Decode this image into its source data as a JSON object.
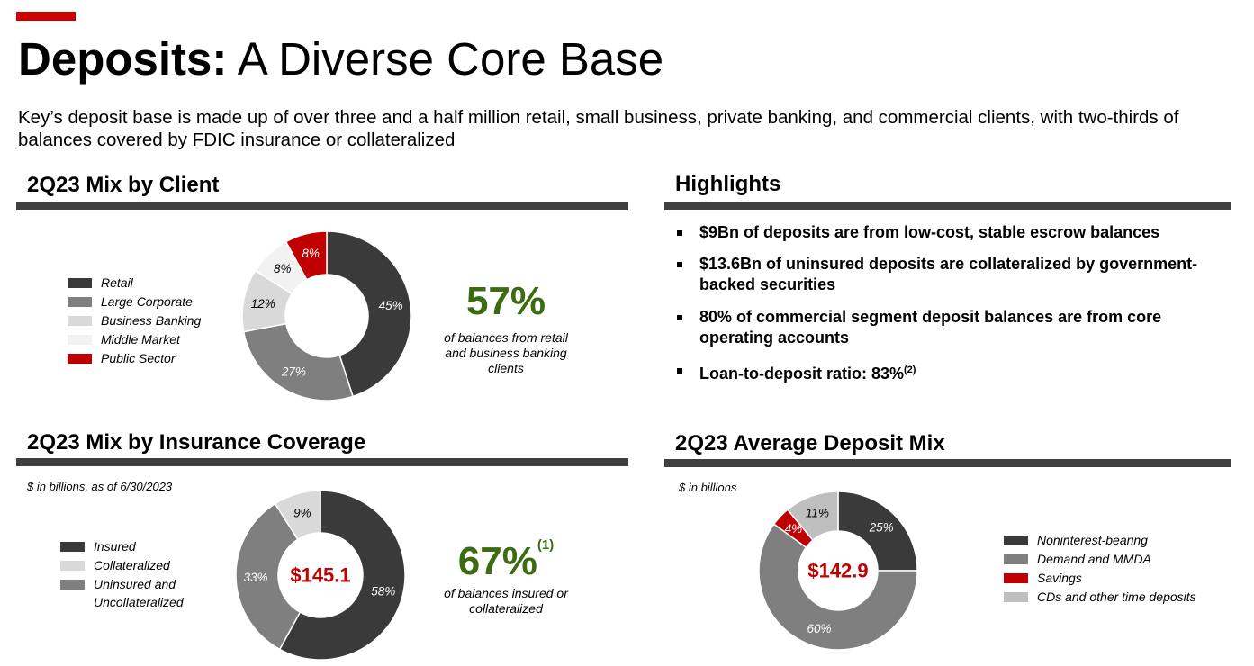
{
  "header": {
    "title_bold": "Deposits:",
    "title_rest": " A Diverse Core Base",
    "subtitle": "Key’s deposit base is made up of over three and a half million retail, small business, private banking, and commercial clients, with two-thirds of balances covered by FDIC insurance or collateralized"
  },
  "client_section": {
    "title": "2Q23 Mix by Client",
    "big_pct": "57%",
    "big_caption": "of balances from retail and business banking clients"
  },
  "insurance_section": {
    "title": "2Q23 Mix by Insurance Coverage",
    "note": "$ in billions, as of 6/30/2023",
    "big_pct": "67%",
    "big_pct_footnote": "(1)",
    "big_caption": "of balances insured or collateralized"
  },
  "highlights_section": {
    "title": "Highlights",
    "items": [
      {
        "text": "$9Bn of deposits are from low-cost, stable escrow balances",
        "footnote": ""
      },
      {
        "text": "$13.6Bn of uninsured deposits are collateralized by government-backed securities",
        "footnote": ""
      },
      {
        "text": "80% of commercial segment deposit balances are from core operating accounts",
        "footnote": ""
      },
      {
        "text": "Loan-to-deposit ratio: 83%",
        "footnote": "(2)"
      }
    ]
  },
  "avg_section": {
    "title": "2Q23 Average Deposit Mix",
    "note": "$ in billions"
  },
  "chart_data": [
    {
      "type": "pie",
      "title": "2Q23 Mix by Client",
      "center_label": "",
      "categories": [
        "Retail",
        "Large Corporate",
        "Business Banking",
        "Middle Market",
        "Public Sector"
      ],
      "values": [
        45,
        27,
        12,
        8,
        8
      ],
      "labels": [
        "45%",
        "27%",
        "12%",
        "8%",
        "8%"
      ],
      "colors": [
        "#3a3a3a",
        "#7f7f7f",
        "#d9d9d9",
        "#f2f2f2",
        "#c00000"
      ],
      "label_colors": [
        "#ffffff",
        "#ffffff",
        "#000000",
        "#000000",
        "#ffffff"
      ],
      "legend_position": "left"
    },
    {
      "type": "pie",
      "title": "2Q23 Mix by Insurance Coverage",
      "center_label": "$145.1",
      "categories": [
        "Insured",
        "Uninsured and Uncollateralized",
        "Collateralized"
      ],
      "values": [
        58,
        33,
        9
      ],
      "labels": [
        "58%",
        "33%",
        "9%"
      ],
      "colors": [
        "#3a3a3a",
        "#7f7f7f",
        "#d9d9d9"
      ],
      "label_colors": [
        "#ffffff",
        "#ffffff",
        "#000000"
      ],
      "legend_position": "left",
      "legend_order": [
        0,
        2,
        1
      ]
    },
    {
      "type": "pie",
      "title": "2Q23 Average Deposit Mix",
      "center_label": "$142.9",
      "categories": [
        "Noninterest-bearing",
        "Demand and MMDA",
        "Savings",
        "CDs and other time deposits"
      ],
      "values": [
        25,
        60,
        4,
        11
      ],
      "labels": [
        "25%",
        "60%",
        "4%",
        "11%"
      ],
      "colors": [
        "#3a3a3a",
        "#7f7f7f",
        "#c00000",
        "#bfbfbf"
      ],
      "label_colors": [
        "#ffffff",
        "#ffffff",
        "#ffffff",
        "#000000"
      ],
      "legend_position": "right"
    }
  ]
}
